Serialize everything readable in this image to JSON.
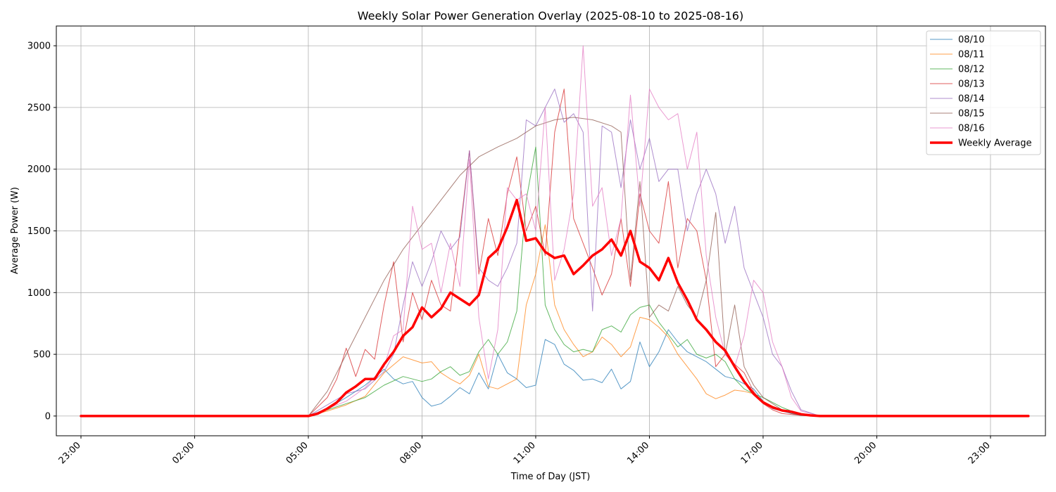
{
  "chart_data": {
    "type": "line",
    "title": "Weekly Solar Power Generation Overlay (2025-08-10 to 2025-08-16)",
    "xlabel": "Time of Day (JST)",
    "ylabel": "Average Power (W)",
    "x_unit": "hours",
    "xlim": [
      -0.65,
      25.45
    ],
    "ylim": [
      -160,
      3160
    ],
    "x_ticks": [
      {
        "value": 0,
        "label": "23:00"
      },
      {
        "value": 3,
        "label": "02:00"
      },
      {
        "value": 6,
        "label": "05:00"
      },
      {
        "value": 9,
        "label": "08:00"
      },
      {
        "value": 12,
        "label": "11:00"
      },
      {
        "value": 15,
        "label": "14:00"
      },
      {
        "value": 18,
        "label": "17:00"
      },
      {
        "value": 21,
        "label": "20:00"
      },
      {
        "value": 24,
        "label": "23:00"
      }
    ],
    "y_ticks": [
      0,
      500,
      1000,
      1500,
      2000,
      2500,
      3000
    ],
    "grid": true,
    "legend_position": "top-right",
    "series": [
      {
        "name": "08/10",
        "color": "#1f77b4",
        "width": 1,
        "opacity": 0.75,
        "x": [
          6,
          6.5,
          7,
          7.5,
          8,
          8.25,
          8.5,
          8.75,
          9,
          9.25,
          9.5,
          9.75,
          10,
          10.25,
          10.5,
          10.75,
          11,
          11.25,
          11.5,
          11.75,
          12,
          12.25,
          12.5,
          12.75,
          13,
          13.25,
          13.5,
          13.75,
          14,
          14.25,
          14.5,
          14.75,
          15,
          15.25,
          15.5,
          15.75,
          16,
          16.25,
          16.5,
          16.75,
          17,
          17.25,
          17.5,
          17.75,
          18,
          18.25,
          18.5,
          18.75,
          19,
          19.5
        ],
        "y": [
          0,
          60,
          150,
          250,
          380,
          300,
          260,
          280,
          150,
          80,
          100,
          160,
          230,
          180,
          350,
          220,
          500,
          350,
          300,
          230,
          250,
          620,
          580,
          420,
          370,
          290,
          300,
          270,
          380,
          220,
          280,
          600,
          400,
          520,
          700,
          600,
          520,
          480,
          440,
          380,
          320,
          300,
          260,
          220,
          120,
          60,
          40,
          20,
          5,
          0
        ]
      },
      {
        "name": "08/11",
        "color": "#ff7f0e",
        "width": 1,
        "opacity": 0.75,
        "x": [
          6,
          6.5,
          7,
          7.5,
          8,
          8.5,
          9,
          9.25,
          9.5,
          9.75,
          10,
          10.25,
          10.5,
          10.75,
          11,
          11.25,
          11.5,
          11.75,
          12,
          12.25,
          12.5,
          12.75,
          13,
          13.25,
          13.5,
          13.75,
          14,
          14.25,
          14.5,
          14.75,
          15,
          15.25,
          15.5,
          15.75,
          16,
          16.25,
          16.5,
          16.75,
          17,
          17.25,
          17.5,
          17.75,
          18,
          18.25,
          18.5,
          18.75,
          19,
          19.5
        ],
        "y": [
          0,
          40,
          90,
          160,
          350,
          480,
          430,
          440,
          350,
          300,
          260,
          330,
          500,
          240,
          220,
          260,
          300,
          900,
          1150,
          1550,
          900,
          700,
          580,
          480,
          520,
          640,
          580,
          480,
          560,
          800,
          780,
          720,
          640,
          500,
          400,
          300,
          180,
          140,
          170,
          210,
          200,
          180,
          120,
          80,
          50,
          30,
          10,
          0
        ]
      },
      {
        "name": "08/12",
        "color": "#2ca02c",
        "width": 1,
        "opacity": 0.75,
        "x": [
          6,
          6.5,
          7,
          7.5,
          8,
          8.5,
          9,
          9.25,
          9.5,
          9.75,
          10,
          10.25,
          10.5,
          10.75,
          11,
          11.25,
          11.5,
          11.75,
          12,
          12.25,
          12.5,
          12.75,
          13,
          13.25,
          13.5,
          13.75,
          14,
          14.25,
          14.5,
          14.75,
          15,
          15.25,
          15.5,
          15.75,
          16,
          16.25,
          16.5,
          16.75,
          17,
          17.25,
          17.5,
          17.75,
          18,
          18.25,
          18.5,
          18.75,
          19,
          19.5
        ],
        "y": [
          0,
          50,
          100,
          150,
          250,
          320,
          280,
          300,
          360,
          400,
          330,
          360,
          520,
          620,
          500,
          600,
          850,
          1750,
          2180,
          900,
          700,
          580,
          520,
          540,
          520,
          700,
          730,
          680,
          820,
          880,
          900,
          760,
          660,
          560,
          620,
          500,
          470,
          500,
          440,
          300,
          220,
          180,
          150,
          110,
          70,
          40,
          15,
          0
        ]
      },
      {
        "name": "08/13",
        "color": "#d62728",
        "width": 1,
        "opacity": 0.75,
        "x": [
          6,
          6.5,
          6.75,
          7,
          7.25,
          7.5,
          7.75,
          8,
          8.25,
          8.5,
          8.75,
          9,
          9.25,
          9.5,
          9.75,
          10,
          10.25,
          10.5,
          10.75,
          11,
          11.25,
          11.5,
          11.75,
          12,
          12.25,
          12.5,
          12.75,
          13,
          13.25,
          13.5,
          13.75,
          14,
          14.25,
          14.5,
          14.75,
          15,
          15.25,
          15.5,
          15.75,
          16,
          16.25,
          16.5,
          16.75,
          17,
          17.25,
          17.5,
          17.75,
          18,
          18.25,
          18.5,
          19,
          19.5
        ],
        "y": [
          0,
          150,
          300,
          550,
          320,
          540,
          460,
          900,
          1250,
          600,
          1000,
          780,
          1100,
          900,
          850,
          1500,
          2150,
          1150,
          1600,
          1300,
          1800,
          2100,
          1500,
          1700,
          1300,
          2300,
          2650,
          1600,
          1400,
          1200,
          980,
          1150,
          1600,
          1050,
          1800,
          1500,
          1400,
          1900,
          1200,
          1600,
          1500,
          1100,
          400,
          500,
          420,
          350,
          200,
          100,
          50,
          20,
          5,
          0
        ]
      },
      {
        "name": "08/14",
        "color": "#9467bd",
        "width": 1,
        "opacity": 0.75,
        "x": [
          6,
          6.5,
          7,
          7.5,
          8,
          8.25,
          8.5,
          8.75,
          9,
          9.25,
          9.5,
          9.75,
          10,
          10.25,
          10.5,
          10.75,
          11,
          11.25,
          11.5,
          11.75,
          12,
          12.25,
          12.5,
          12.75,
          13,
          13.25,
          13.5,
          13.75,
          14,
          14.25,
          14.5,
          14.75,
          15,
          15.25,
          15.5,
          15.75,
          16,
          16.25,
          16.5,
          16.75,
          17,
          17.25,
          17.5,
          17.75,
          18,
          18.25,
          18.5,
          18.75,
          19,
          19.5
        ],
        "y": [
          0,
          90,
          180,
          220,
          360,
          500,
          900,
          1250,
          1050,
          1250,
          1500,
          1350,
          1450,
          2150,
          1200,
          1100,
          1050,
          1200,
          1400,
          2400,
          2350,
          2500,
          2650,
          2380,
          2450,
          2300,
          850,
          2350,
          2300,
          1850,
          2400,
          2000,
          2250,
          1900,
          2000,
          2000,
          1500,
          1800,
          2000,
          1800,
          1400,
          1700,
          1200,
          1000,
          800,
          500,
          400,
          200,
          50,
          0
        ]
      },
      {
        "name": "08/15",
        "color": "#8c564b",
        "width": 1,
        "opacity": 0.75,
        "x": [
          6,
          6.5,
          7,
          7.5,
          8,
          8.5,
          9,
          9.5,
          10,
          10.5,
          11,
          11.5,
          12,
          12.5,
          13,
          13.5,
          14,
          14.25,
          14.5,
          14.75,
          15,
          15.25,
          15.5,
          15.75,
          16,
          16.25,
          16.5,
          16.75,
          17,
          17.25,
          17.5,
          17.75,
          18,
          18.25,
          18.5,
          18.75,
          19,
          19.5
        ],
        "y": [
          0,
          200,
          500,
          800,
          1100,
          1350,
          1550,
          1750,
          1950,
          2100,
          2180,
          2250,
          2350,
          2400,
          2420,
          2400,
          2350,
          2300,
          1100,
          1900,
          800,
          900,
          850,
          1050,
          900,
          800,
          1100,
          1650,
          500,
          900,
          400,
          250,
          150,
          100,
          50,
          20,
          5,
          0
        ]
      },
      {
        "name": "08/16",
        "color": "#e377c2",
        "width": 1,
        "opacity": 0.75,
        "x": [
          6,
          6.5,
          7,
          7.5,
          8,
          8.25,
          8.5,
          8.75,
          9,
          9.25,
          9.5,
          9.75,
          10,
          10.25,
          10.5,
          10.75,
          11,
          11.25,
          11.5,
          11.75,
          12,
          12.25,
          12.5,
          12.75,
          13,
          13.25,
          13.5,
          13.75,
          14,
          14.25,
          14.5,
          14.75,
          15,
          15.25,
          15.5,
          15.75,
          16,
          16.25,
          16.5,
          16.75,
          17,
          17.25,
          17.5,
          17.75,
          18,
          18.25,
          18.5,
          18.75,
          19,
          19.5
        ],
        "y": [
          0,
          60,
          120,
          230,
          400,
          650,
          700,
          1700,
          1350,
          1400,
          1000,
          1400,
          1050,
          2080,
          800,
          300,
          700,
          1850,
          1750,
          1800,
          1500,
          2500,
          1100,
          1350,
          1800,
          3000,
          1700,
          1850,
          1300,
          1600,
          2600,
          1700,
          2650,
          2500,
          2400,
          2450,
          2000,
          2300,
          1300,
          800,
          500,
          400,
          650,
          1100,
          1000,
          600,
          400,
          150,
          40,
          0
        ]
      },
      {
        "name": "Weekly Average",
        "color": "#ff0000",
        "width": 3.5,
        "opacity": 1,
        "x": [
          0,
          1,
          2,
          3,
          4,
          5,
          6,
          6.25,
          6.5,
          6.75,
          7,
          7.25,
          7.5,
          7.75,
          8,
          8.25,
          8.5,
          8.75,
          9,
          9.25,
          9.5,
          9.75,
          10,
          10.25,
          10.5,
          10.75,
          11,
          11.25,
          11.5,
          11.75,
          12,
          12.25,
          12.5,
          12.75,
          13,
          13.25,
          13.5,
          13.75,
          14,
          14.25,
          14.5,
          14.75,
          15,
          15.25,
          15.5,
          15.75,
          16,
          16.25,
          16.5,
          16.75,
          17,
          17.25,
          17.5,
          17.75,
          18,
          18.25,
          18.5,
          18.75,
          19,
          19.25,
          19.5,
          20,
          21,
          22,
          23,
          24,
          25
        ],
        "y": [
          0,
          0,
          0,
          0,
          0,
          0,
          0,
          20,
          60,
          110,
          190,
          240,
          300,
          300,
          420,
          520,
          650,
          720,
          880,
          800,
          870,
          1000,
          950,
          900,
          980,
          1280,
          1350,
          1530,
          1750,
          1420,
          1440,
          1330,
          1280,
          1300,
          1150,
          1220,
          1300,
          1350,
          1430,
          1300,
          1500,
          1250,
          1200,
          1100,
          1280,
          1080,
          940,
          780,
          700,
          600,
          530,
          400,
          280,
          180,
          110,
          70,
          45,
          35,
          15,
          5,
          0,
          0,
          0,
          0,
          0,
          0,
          0
        ]
      }
    ]
  }
}
